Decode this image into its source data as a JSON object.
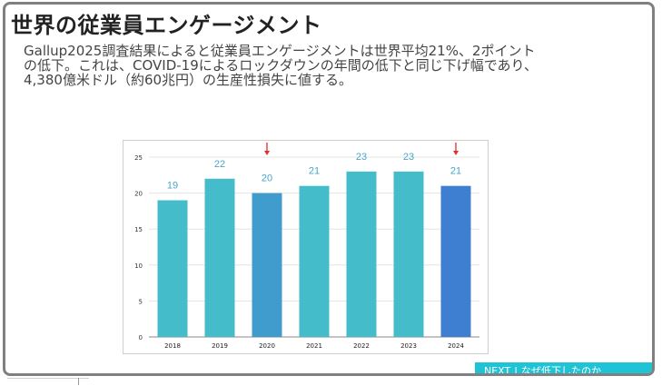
{
  "slide": {
    "title": "世界の従業員エンゲージメント",
    "paragraph_lines": [
      "Gallup2025調査結果によると従業員エンゲージメントは世界平均21%、2ポイント",
      "の低下。これは、COVID-19によるロックダウンの年間の低下と同じ下げ幅であり、",
      "4,380億米ドル（約60兆円）の生産性損失に値する。"
    ],
    "next_label": "NEXT",
    "next_separator": "|",
    "next_topic": "なぜ低下したのか",
    "footer_fragment": "",
    "colors": {
      "accent": "#1ec3d6",
      "bar_default": "#45bcc9",
      "bar_2020": "#3f9ccc",
      "bar_2024": "#3f7fd1",
      "label": "#4aa6c8",
      "marker": "#e03030"
    }
  },
  "chart_data": {
    "type": "bar",
    "categories": [
      "2018",
      "2019",
      "2020",
      "2021",
      "2022",
      "2023",
      "2024"
    ],
    "values": [
      19,
      22,
      20,
      21,
      23,
      23,
      21
    ],
    "highlight_drop_years": [
      "2020",
      "2024"
    ],
    "yticks": [
      0,
      5,
      10,
      15,
      20,
      25
    ],
    "ylim": [
      0,
      25
    ],
    "title": "",
    "xlabel": "",
    "ylabel": "",
    "grid": true
  }
}
